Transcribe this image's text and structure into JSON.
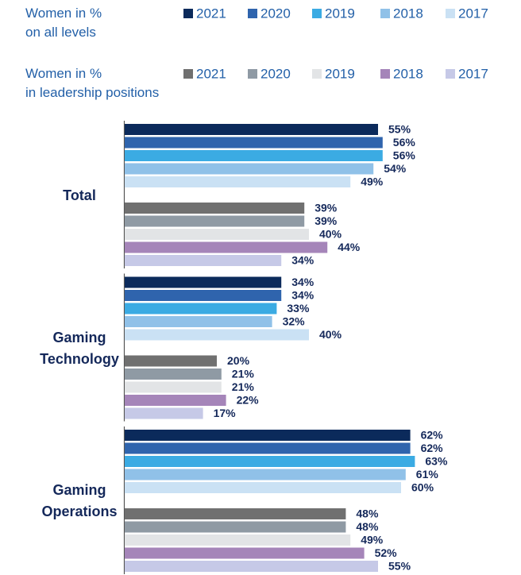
{
  "chart_data": {
    "type": "bar",
    "orientation": "horizontal",
    "categories": [
      "Total",
      "Gaming Technology",
      "Gaming Operations"
    ],
    "groups": [
      {
        "label": "Women in %\non all levels",
        "series": [
          {
            "name": "2021",
            "color": "#0b2a5b",
            "values": [
              55,
              34,
              62
            ],
            "value_labels": [
              "55%",
              "34%",
              "62%"
            ]
          },
          {
            "name": "2020",
            "color": "#2f64ad",
            "values": [
              56,
              34,
              62
            ],
            "value_labels": [
              "56%",
              "34%",
              "62%"
            ]
          },
          {
            "name": "2019",
            "color": "#3babe3",
            "values": [
              56,
              33,
              63
            ],
            "value_labels": [
              "56%",
              "33%",
              "63%"
            ]
          },
          {
            "name": "2018",
            "color": "#90c1e8",
            "values": [
              54,
              32,
              61
            ],
            "value_labels": [
              "54%",
              "32%",
              "61%"
            ]
          },
          {
            "name": "2017",
            "color": "#cae1f4",
            "values": [
              49,
              40,
              60
            ],
            "value_labels": [
              "49%",
              "40%",
              "60%"
            ]
          }
        ]
      },
      {
        "label": "Women in %\nin leadership positions",
        "series": [
          {
            "name": "2021",
            "color": "#707070",
            "values": [
              39,
              20,
              48
            ],
            "value_labels": [
              "39%",
              "20%",
              "48%"
            ]
          },
          {
            "name": "2020",
            "color": "#8f9aa4",
            "values": [
              39,
              21,
              48
            ],
            "value_labels": [
              "39%",
              "21%",
              "48%"
            ]
          },
          {
            "name": "2019",
            "color": "#e2e4e6",
            "values": [
              40,
              21,
              49
            ],
            "value_labels": [
              "40%",
              "21%",
              "49%"
            ]
          },
          {
            "name": "2018",
            "color": "#a585b9",
            "values": [
              44,
              22,
              52
            ],
            "value_labels": [
              "44%",
              "22%",
              "52%"
            ]
          },
          {
            "name": "2017",
            "color": "#c6c9e7",
            "values": [
              34,
              17,
              55
            ],
            "value_labels": [
              "34%",
              "17%",
              "55%"
            ]
          }
        ]
      }
    ]
  }
}
